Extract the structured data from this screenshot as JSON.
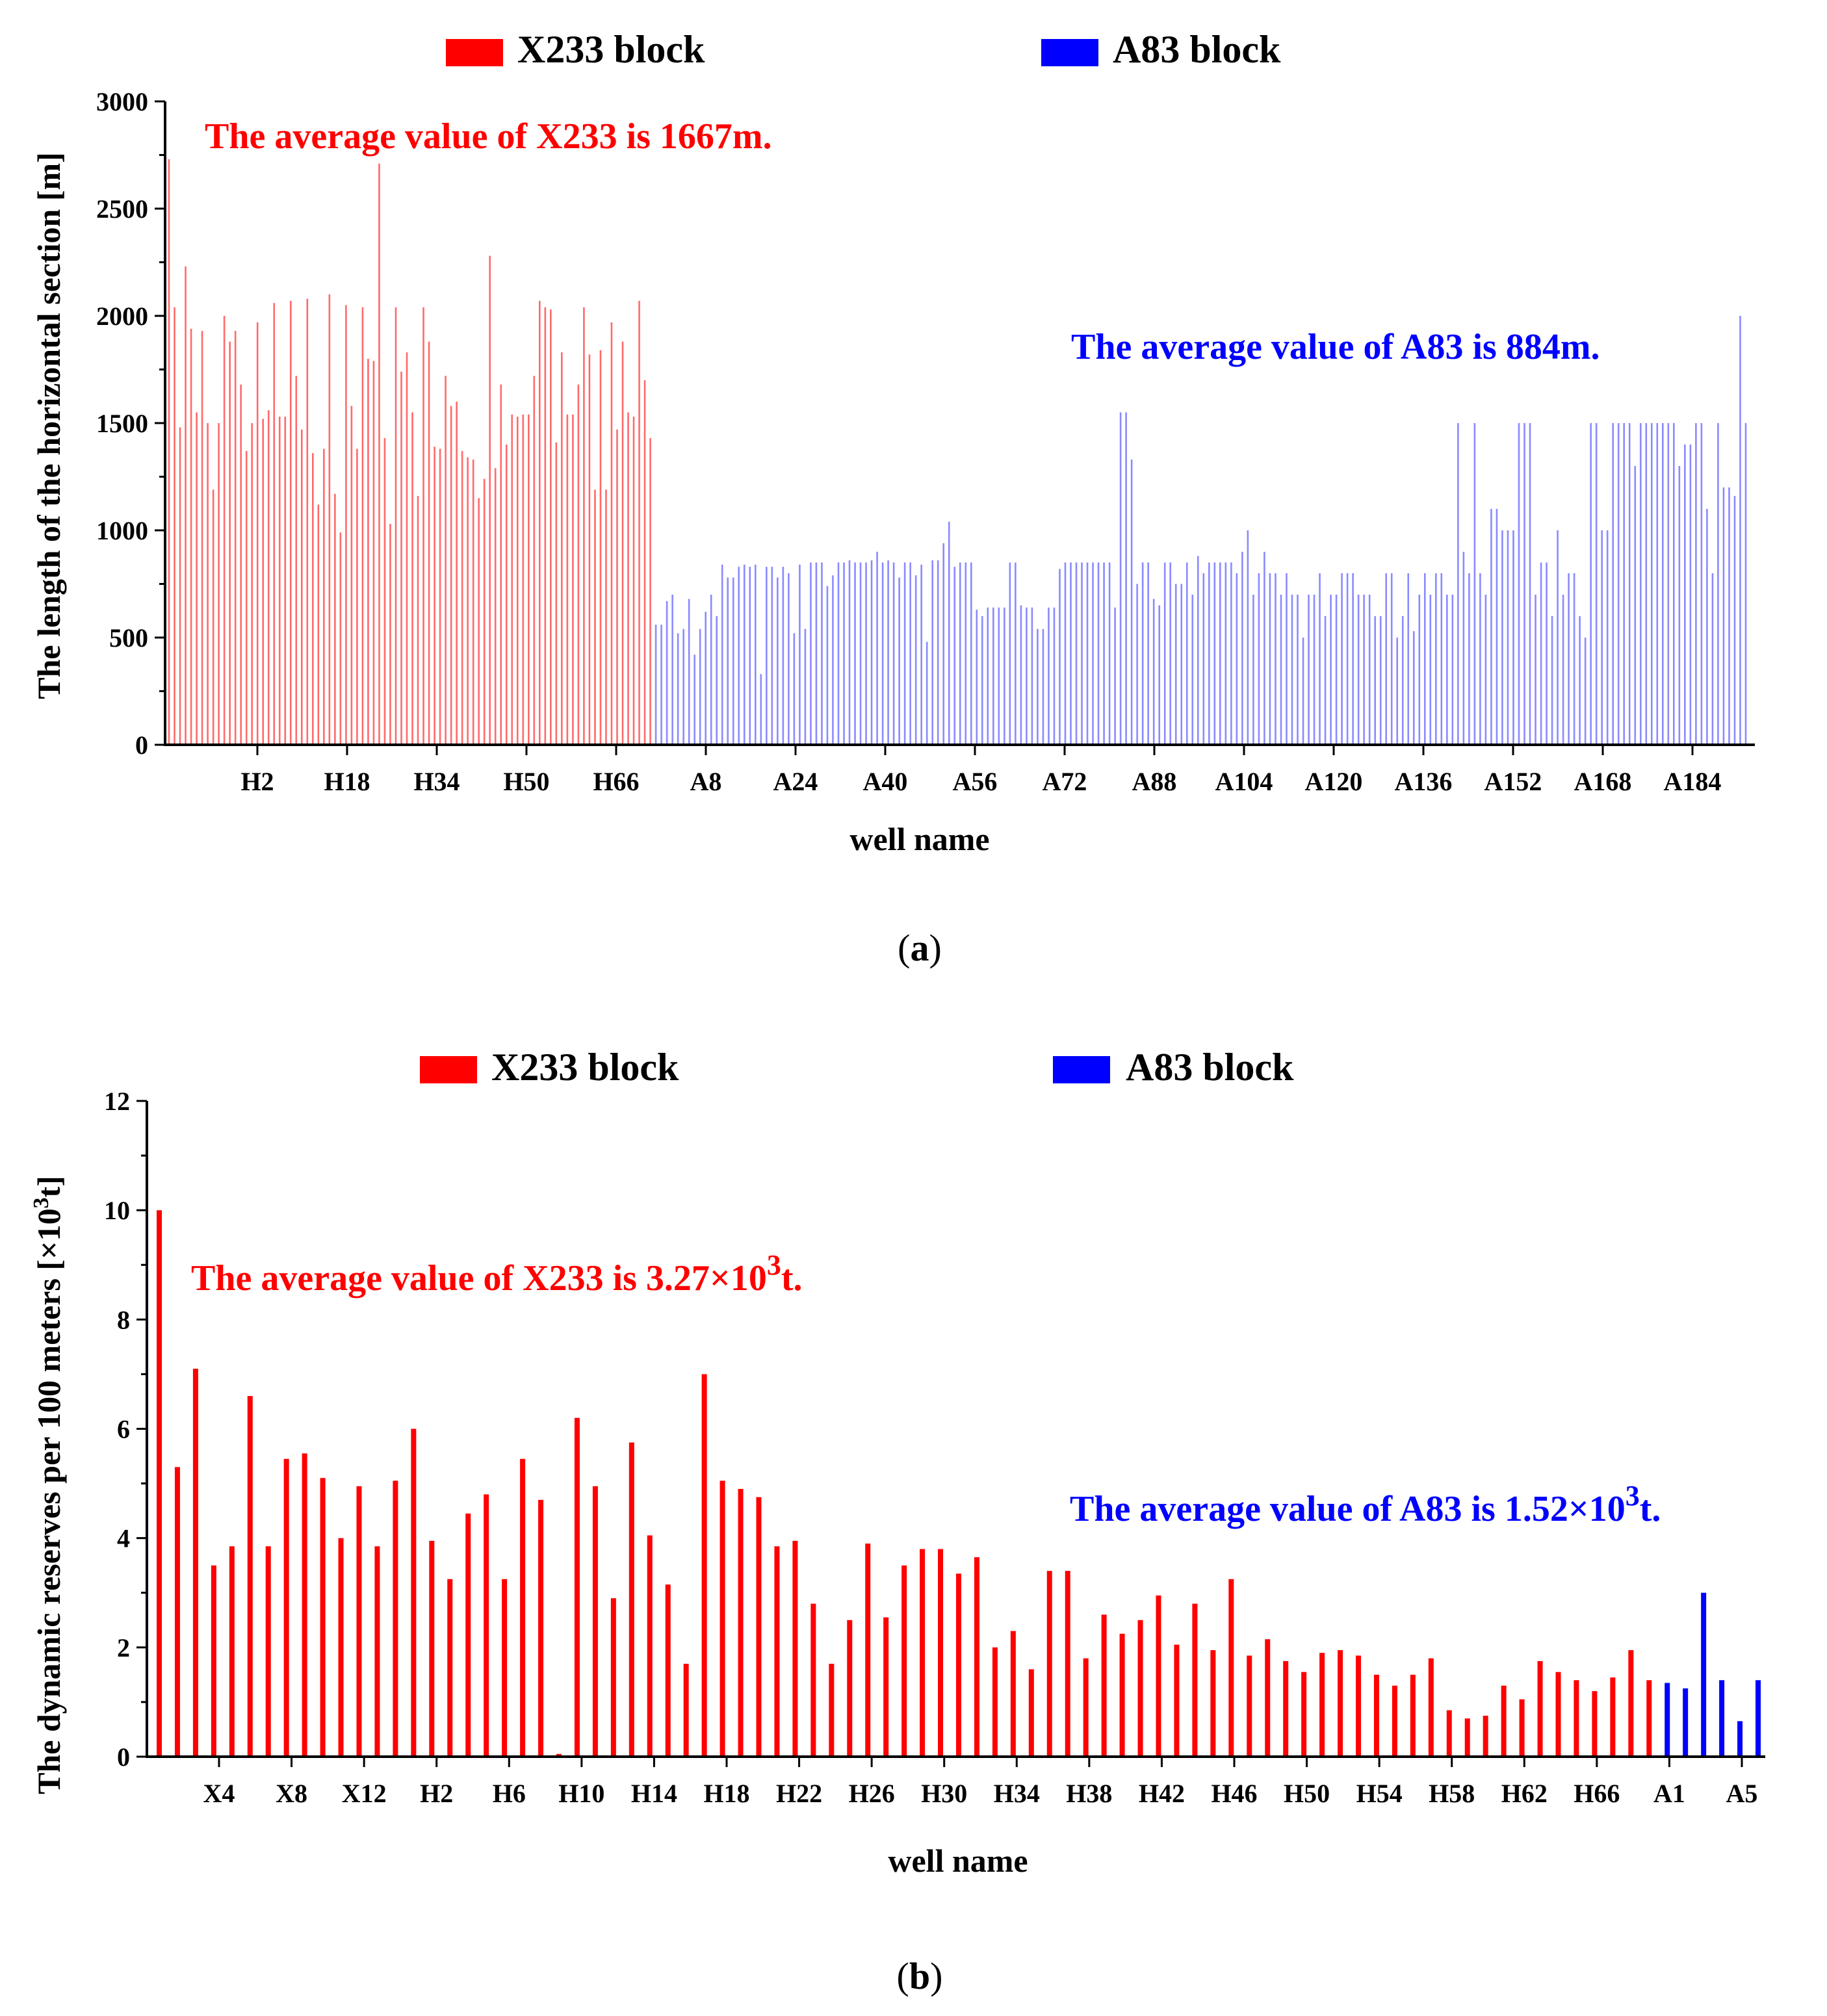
{
  "chart_data": [
    {
      "type": "bar",
      "panel": "(a)",
      "panel_label": {
        "open": "(",
        "letter": "a",
        "close": ")"
      },
      "xlabel": "well name",
      "ylabel": "The length of the horizontal section [m]",
      "ylim": [
        0,
        3000
      ],
      "yticks": [
        "0",
        "500",
        "1000",
        "1500",
        "2000",
        "2500",
        "3000"
      ],
      "xtick_labels": [
        "H2",
        "H18",
        "H34",
        "H50",
        "H66",
        "A8",
        "A24",
        "A40",
        "A56",
        "A72",
        "A88",
        "A104",
        "A120",
        "A136",
        "A152",
        "A168",
        "A184"
      ],
      "legend": [
        {
          "label": "X233 block",
          "color": "#ff0000"
        },
        {
          "label": "A83 block",
          "color": "#0000ff"
        }
      ],
      "annotations": [
        {
          "text": "The average value of X233 is 1667m.",
          "color": "#ff0000"
        },
        {
          "text": "The average value of A83 is 884m.",
          "color": "#0000ff"
        }
      ],
      "series": [
        {
          "name": "X233 block",
          "color": "#ff6a6a",
          "values": [
            2730,
            2040,
            1480,
            2230,
            1940,
            1550,
            1930,
            1500,
            1190,
            1500,
            2000,
            1880,
            1930,
            1680,
            1370,
            1500,
            1970,
            1520,
            1560,
            2060,
            1530,
            1530,
            2070,
            1720,
            1470,
            2080,
            1360,
            1120,
            1380,
            2100,
            1170,
            990,
            2050,
            1580,
            1380,
            2040,
            1800,
            1790,
            2710,
            1430,
            1030,
            2040,
            1740,
            1830,
            1550,
            1160,
            2040,
            1880,
            1390,
            1380,
            1720,
            1580,
            1600,
            1370,
            1340,
            1330,
            1150,
            1240,
            2280,
            1290,
            1680,
            1400,
            1540,
            1530,
            1540,
            1540,
            1720,
            2070,
            2040,
            2030,
            1410,
            1830,
            1540,
            1540,
            1680,
            2040,
            1820,
            1190,
            1840,
            1190,
            1970,
            1470,
            1880,
            1550,
            1530,
            2070,
            1700,
            1430
          ]
        },
        {
          "name": "A83 block",
          "color": "#8a8aff",
          "values": [
            560,
            560,
            670,
            700,
            520,
            540,
            680,
            420,
            540,
            620,
            700,
            600,
            840,
            780,
            780,
            830,
            840,
            830,
            840,
            330,
            830,
            830,
            780,
            830,
            800,
            520,
            840,
            540,
            850,
            850,
            850,
            740,
            790,
            850,
            850,
            860,
            850,
            850,
            850,
            860,
            900,
            850,
            860,
            850,
            780,
            850,
            850,
            790,
            840,
            480,
            860,
            860,
            940,
            1040,
            830,
            850,
            850,
            850,
            630,
            600,
            640,
            640,
            640,
            640,
            850,
            850,
            650,
            640,
            640,
            540,
            540,
            640,
            640,
            820,
            850,
            850,
            850,
            850,
            850,
            850,
            850,
            850,
            850,
            640,
            1550,
            1550,
            1330,
            750,
            850,
            850,
            680,
            650,
            850,
            850,
            750,
            750,
            850,
            700,
            880,
            800,
            850,
            850,
            850,
            850,
            850,
            800,
            900,
            1000,
            700,
            800,
            900,
            800,
            800,
            700,
            800,
            700,
            700,
            500,
            700,
            700,
            800,
            600,
            700,
            700,
            800,
            800,
            800,
            700,
            700,
            700,
            600,
            600,
            800,
            800,
            500,
            600,
            800,
            530,
            700,
            800,
            700,
            800,
            800,
            700,
            700,
            1500,
            900,
            800,
            1500,
            800,
            700,
            1100,
            1100,
            1000,
            1000,
            1000,
            1500,
            1500,
            1500,
            700,
            850,
            850,
            600,
            1000,
            700,
            800,
            800,
            600,
            500,
            1500,
            1500,
            1000,
            1000,
            1500,
            1500,
            1500,
            1500,
            1300,
            1500,
            1500,
            1500,
            1500,
            1500,
            1500,
            1500,
            1300,
            1400,
            1400,
            1500,
            1500,
            1100,
            800,
            1500,
            1200,
            1200,
            1160,
            2000,
            1500
          ]
        }
      ]
    },
    {
      "type": "bar",
      "panel": "(b)",
      "panel_label": {
        "open": "(",
        "letter": "b",
        "close": ")"
      },
      "xlabel": "well name",
      "ylabel": "The dynamic reserves per 100 meters [×10",
      "ylabel_sup": "3",
      "ylabel_tail": "t]",
      "ylim": [
        0,
        12
      ],
      "yticks": [
        "0",
        "2",
        "4",
        "6",
        "8",
        "10",
        "12"
      ],
      "xtick_labels": [
        "X4",
        "X8",
        "X12",
        "H2",
        "H6",
        "H10",
        "H14",
        "H18",
        "H22",
        "H26",
        "H30",
        "H34",
        "H38",
        "H42",
        "H46",
        "H50",
        "H54",
        "H58",
        "H62",
        "H66",
        "A1",
        "A5"
      ],
      "legend": [
        {
          "label": "X233 block",
          "color": "#ff0000"
        },
        {
          "label": "A83 block",
          "color": "#0000ff"
        }
      ],
      "annotations": [
        {
          "text": "The average value of X233 is 3.27×10",
          "sup": "3",
          "tail": "t.",
          "color": "#ff0000"
        },
        {
          "text": "The average value of A83 is 1.52×10",
          "sup": "3",
          "tail": "t.",
          "color": "#0000ff"
        }
      ],
      "series": [
        {
          "name": "X233 block",
          "color": "#ff0000",
          "values": [
            10.0,
            5.3,
            7.1,
            3.5,
            3.85,
            6.6,
            3.85,
            5.45,
            5.55,
            5.1,
            4.0,
            4.95,
            3.85,
            5.05,
            6.0,
            3.95,
            3.25,
            4.45,
            4.8,
            3.25,
            5.45,
            4.7,
            0.05,
            6.2,
            4.95,
            2.9,
            5.75,
            4.05,
            3.15,
            1.7,
            7.0,
            5.05,
            4.9,
            4.75,
            3.85,
            3.95,
            2.8,
            1.7,
            2.5,
            3.9,
            2.55,
            3.5,
            3.8,
            3.8,
            3.35,
            3.65,
            2.0,
            2.3,
            1.6,
            3.4,
            3.4,
            1.8,
            2.6,
            2.25,
            2.5,
            2.95,
            2.05,
            2.8,
            1.95,
            3.25,
            1.85,
            2.15,
            1.75,
            1.55,
            1.9,
            1.95,
            1.85,
            1.5,
            1.3,
            1.5,
            1.8,
            0.85,
            0.7,
            0.75,
            1.3,
            1.05,
            1.75,
            1.55,
            1.4,
            1.2,
            1.45,
            1.95,
            1.4
          ]
        },
        {
          "name": "A83 block",
          "color": "#0000ff",
          "values": [
            1.35,
            1.25,
            3.0,
            1.4,
            0.65,
            1.4
          ]
        }
      ]
    }
  ]
}
